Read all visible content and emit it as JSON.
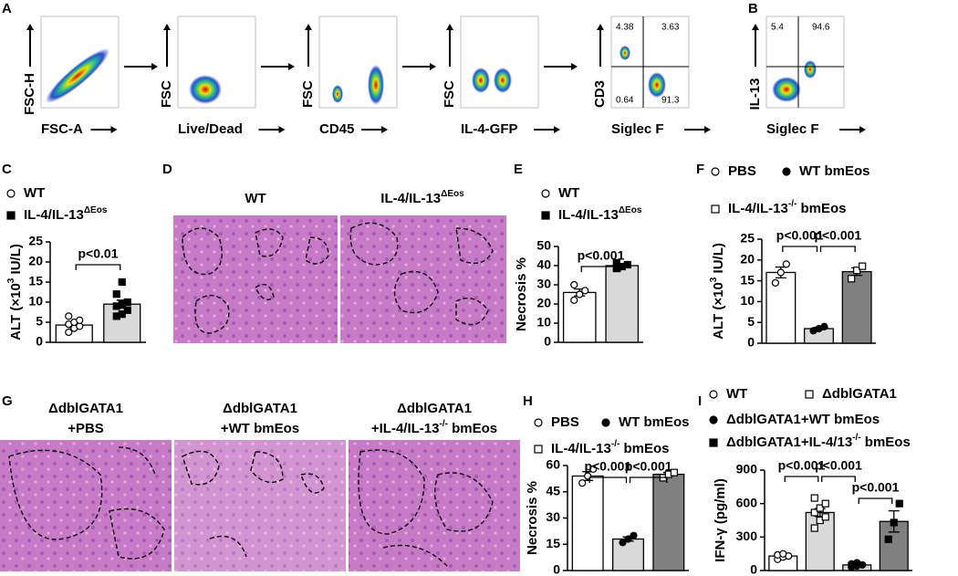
{
  "panels": {
    "A": {
      "letter": "A",
      "plots": [
        {
          "y": "FSC-H",
          "x": "FSC-A"
        },
        {
          "y": "FSC",
          "x": "Live/Dead"
        },
        {
          "y": "FSC",
          "x": "CD45"
        },
        {
          "y": "FSC",
          "x": "IL-4-GFP"
        },
        {
          "y": "CD3",
          "x": "Siglec F",
          "quadrants": [
            "4.38",
            "3.63",
            "0.64",
            "91.3"
          ]
        }
      ]
    },
    "B": {
      "letter": "B",
      "plots": [
        {
          "y": "IL-13",
          "x": "Siglec F",
          "quadrants": [
            "5.4",
            "94.6"
          ]
        }
      ]
    },
    "D": {
      "letter": "D",
      "images": [
        {
          "title": [
            "WT"
          ]
        },
        {
          "title": [
            {
              "text": "IL-4/IL-13",
              "sup": "ΔEos"
            }
          ]
        }
      ]
    },
    "G": {
      "letter": "G",
      "images": [
        {
          "title": [
            "ΔdblGATA1",
            "+PBS"
          ]
        },
        {
          "title": [
            "ΔdblGATA1",
            "+WT bmEos"
          ]
        },
        {
          "title": [
            "ΔdblGATA1",
            {
              "text": "+IL-4/IL-13",
              "sup": "-/-",
              "after": " bmEos"
            }
          ]
        }
      ]
    }
  },
  "chart_data": [
    {
      "type": "bar",
      "letter": "C",
      "ylabel": {
        "text": "ALT (×10",
        "sup": "3",
        "after": " IU/L)"
      },
      "categories": [
        "WT",
        {
          "text": "IL-4/IL-13",
          "sup": "ΔEos"
        }
      ],
      "values": [
        4.3,
        9.5
      ],
      "errors": [
        0.6,
        1.0
      ],
      "colors": [
        "#ffffff",
        "#d9d9d9"
      ],
      "points": [
        [
          2.5,
          3.5,
          4.0,
          4.5,
          5.0,
          5.5,
          6.5
        ],
        [
          6.5,
          7.0,
          8.0,
          9.0,
          9.5,
          10.0,
          12.0,
          15.0
        ]
      ],
      "ylim": [
        0,
        25
      ],
      "yticks": [
        0,
        5,
        10,
        15,
        20,
        25
      ],
      "annotations": [
        "p<0.01"
      ]
    },
    {
      "type": "bar",
      "letter": "E",
      "ylabel": "Necrosis %",
      "categories": [
        "WT",
        {
          "text": "IL-4/IL-13",
          "sup": "ΔEos"
        }
      ],
      "values": [
        26,
        40
      ],
      "errors": [
        1.8,
        0.8
      ],
      "colors": [
        "#ffffff",
        "#d9d9d9"
      ],
      "points": [
        [
          22,
          25,
          27,
          30
        ],
        [
          38.5,
          39.5,
          40.5,
          41.5
        ]
      ],
      "ylim": [
        0,
        50
      ],
      "yticks": [
        0,
        10,
        20,
        30,
        40,
        50
      ],
      "annotations": [
        "p<0.001"
      ]
    },
    {
      "type": "bar",
      "letter": "F",
      "ylabel": {
        "text": "ALT (×10",
        "sup": "3",
        "after": " IU/L)"
      },
      "categories": [
        "PBS",
        "WT bmEos",
        {
          "text": "IL-4/IL-13",
          "sup": "-/-",
          "after": " bmEos"
        }
      ],
      "values": [
        17,
        3.5,
        17.2
      ],
      "errors": [
        1.3,
        0.3,
        0.9
      ],
      "colors": [
        "#ffffff",
        "#d9d9d9",
        "#808080"
      ],
      "points": [
        [
          14.5,
          17,
          19
        ],
        [
          3,
          3.5,
          4
        ],
        [
          15.5,
          17.5,
          18.5
        ]
      ],
      "ylim": [
        0,
        25
      ],
      "yticks": [
        0,
        5,
        10,
        15,
        20,
        25
      ],
      "annotations": [
        "p<0.001",
        "p<0.001"
      ]
    },
    {
      "type": "bar",
      "letter": "H",
      "ylabel": "Necrosis %",
      "categories": [
        "PBS",
        "WT bmEos",
        {
          "text": "IL-4/IL-13",
          "sup": "-/-",
          "after": " bmEos"
        }
      ],
      "values": [
        54,
        18,
        55
      ],
      "errors": [
        2.5,
        1.2,
        1.0
      ],
      "colors": [
        "#ffffff",
        "#d9d9d9",
        "#808080"
      ],
      "points": [
        [
          50,
          54,
          58
        ],
        [
          16,
          18,
          20
        ],
        [
          53,
          55,
          56
        ]
      ],
      "ylim": [
        0,
        60
      ],
      "yticks": [
        0,
        15,
        30,
        45,
        60
      ],
      "annotations": [
        "p<0.001",
        "p<0.001"
      ]
    },
    {
      "type": "bar",
      "letter": "I",
      "ylabel": "IFN-γ (pg/ml)",
      "categories": [
        "WT",
        "ΔdblGATA1",
        "ΔdblGATA1+WT bmEos",
        {
          "text": "ΔdblGATA1+IL-4/13",
          "sup": "-/-",
          "after": " bmEos"
        }
      ],
      "values": [
        130,
        520,
        50,
        440
      ],
      "errors": [
        12,
        35,
        8,
        95
      ],
      "colors": [
        "#ffffff",
        "#d9d9d9",
        "#d9d9d9",
        "#808080"
      ],
      "points": [
        [
          100,
          120,
          130,
          140,
          150
        ],
        [
          380,
          450,
          480,
          520,
          560,
          600,
          650
        ],
        [
          30,
          40,
          50,
          60,
          70
        ],
        [
          280,
          430,
          600
        ]
      ],
      "ylim": [
        0,
        900
      ],
      "yticks": [
        0,
        300,
        600,
        900
      ],
      "annotations": [
        "p<0.001",
        "p<0.001",
        "p<0.001"
      ]
    }
  ]
}
